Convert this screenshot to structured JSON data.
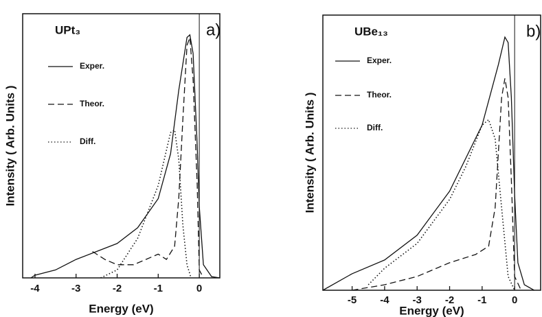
{
  "chart_data": [
    {
      "type": "line",
      "title": "UPt₃",
      "panel_label": "a)",
      "xlabel": "Energy (eV)",
      "ylabel": "Intensity ( Arb. Units )",
      "xlim": [
        -4.3,
        0.5
      ],
      "ylim": [
        0,
        100
      ],
      "xticks": [
        -4,
        -3,
        -2,
        -1,
        0
      ],
      "zero_line": true,
      "series": [
        {
          "name": "Exper.",
          "color": "#111",
          "dash": "solid",
          "x": [
            -4.1,
            -4,
            -3.5,
            -3,
            -2.5,
            -2,
            -1.5,
            -1,
            -0.7,
            -0.5,
            -0.3,
            -0.23,
            -0.15,
            -0.05,
            0,
            0.1,
            0.3,
            0.5
          ],
          "values": [
            0,
            1,
            3,
            7,
            10,
            13,
            19,
            30,
            47,
            71,
            91,
            92,
            85,
            50,
            27,
            5,
            0.5,
            0
          ]
        },
        {
          "name": "Theor.",
          "color": "#111",
          "dash": "dashed",
          "x": [
            -2.6,
            -2.3,
            -2,
            -1.6,
            -1.3,
            -1,
            -0.8,
            -0.6,
            -0.5,
            -0.4,
            -0.3,
            -0.23,
            -0.15,
            -0.05,
            0,
            0.1
          ],
          "values": [
            10,
            7,
            5,
            5,
            7,
            9,
            7,
            12,
            30,
            60,
            88,
            91,
            75,
            35,
            3,
            0
          ]
        },
        {
          "name": "Diff.",
          "color": "#111",
          "dash": "dotted",
          "x": [
            -2.4,
            -2,
            -1.5,
            -1,
            -0.7,
            -0.6,
            -0.5,
            -0.4,
            -0.3,
            -0.2
          ],
          "values": [
            0,
            3,
            15,
            35,
            55,
            56,
            45,
            20,
            5,
            0
          ]
        }
      ]
    },
    {
      "type": "line",
      "title": "UBe₁₃",
      "panel_label": "b)",
      "xlabel": "Energy (eV)",
      "ylabel": "Intensity ( Arb. Units )",
      "xlim": [
        -5.9,
        0.8
      ],
      "ylim": [
        0,
        100
      ],
      "xticks": [
        -5,
        -4,
        -3,
        -2,
        -1,
        0
      ],
      "zero_line": true,
      "series": [
        {
          "name": "Exper.",
          "color": "#111",
          "dash": "solid",
          "x": [
            -5.9,
            -5,
            -4,
            -3,
            -2,
            -1,
            -0.5,
            -0.3,
            -0.2,
            -0.1,
            0,
            0.1,
            0.3,
            0.6
          ],
          "values": [
            0,
            6,
            11,
            20,
            36,
            60,
            82,
            92,
            90,
            70,
            35,
            10,
            2,
            0
          ]
        },
        {
          "name": "Theor.",
          "color": "#111",
          "dash": "dashed",
          "x": [
            -5,
            -4,
            -3,
            -2,
            -1.2,
            -0.8,
            -0.6,
            -0.4,
            -0.3,
            -0.2,
            -0.1,
            0,
            0.2
          ],
          "values": [
            0,
            2,
            5,
            10,
            13,
            16,
            30,
            70,
            77,
            70,
            40,
            5,
            0
          ]
        },
        {
          "name": "Diff.",
          "color": "#111",
          "dash": "dotted",
          "x": [
            -4.5,
            -4,
            -3,
            -2,
            -1.5,
            -1,
            -0.8,
            -0.6,
            -0.4,
            -0.2,
            0
          ],
          "values": [
            2,
            8,
            17,
            33,
            45,
            60,
            62,
            55,
            30,
            5,
            0
          ]
        }
      ]
    }
  ]
}
